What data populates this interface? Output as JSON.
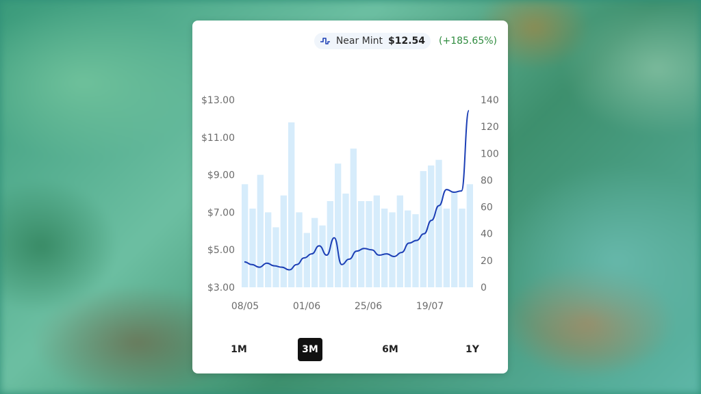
{
  "header": {
    "condition": "Near Mint",
    "price": "$12.54",
    "change": "(+185.65%)",
    "icon": "pulse-icon",
    "accent_color": "#2e8b3e"
  },
  "ranges": {
    "items": [
      "1M",
      "3M",
      "6M",
      "1Y"
    ],
    "active": "3M"
  },
  "chart_data": {
    "type": "bar+line",
    "x_tick_labels": [
      "08/05",
      "01/06",
      "25/06",
      "19/07"
    ],
    "y_left": {
      "ticks": [
        "$3.00",
        "$5.00",
        "$7.00",
        "$9.00",
        "$11.00",
        "$13.00"
      ],
      "range": [
        3,
        13
      ]
    },
    "y_right": {
      "ticks": [
        "0",
        "20",
        "40",
        "60",
        "80",
        "100",
        "120",
        "140"
      ],
      "range": [
        0,
        140
      ]
    },
    "bar_color": "#d6ecfb",
    "line_color": "#1c3fb5",
    "bars": {
      "axis": "left",
      "values": [
        8.5,
        7.2,
        9.0,
        7.0,
        6.2,
        7.9,
        11.8,
        7.0,
        5.9,
        6.7,
        6.3,
        7.6,
        9.6,
        8.0,
        10.4,
        7.6,
        7.6,
        7.9,
        7.2,
        7.0,
        7.9,
        7.1,
        6.9,
        9.2,
        9.5,
        9.8,
        7.2,
        8.1,
        7.2,
        8.5
      ]
    },
    "line": {
      "axis": "right",
      "values": [
        19,
        17,
        15,
        18,
        16,
        15,
        13,
        17,
        22,
        25,
        31,
        24,
        37,
        17,
        21,
        27,
        29,
        28,
        24,
        25,
        23,
        26,
        33,
        35,
        40,
        50,
        61,
        73,
        71,
        72,
        132
      ]
    }
  }
}
